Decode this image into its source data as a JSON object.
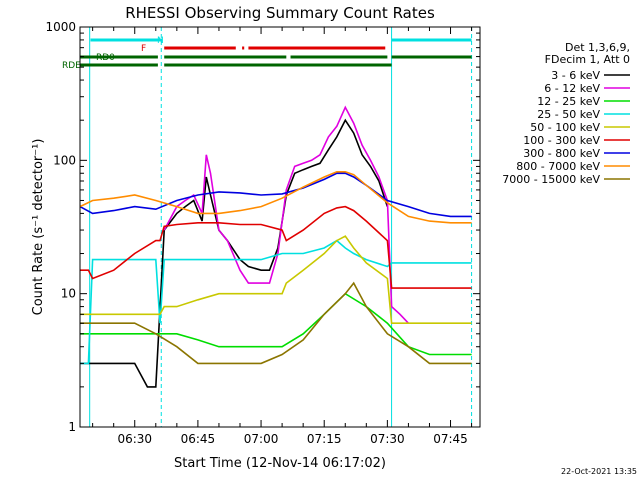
{
  "chart_data": {
    "type": "line",
    "title": "RHESSI Observing Summary Count Rates",
    "xlabel": "Start Time (12-Nov-14 06:17:02)",
    "ylabel": "Count Rate (s⁻¹ detector⁻¹)",
    "yscale": "log",
    "ylim": [
      1,
      1000
    ],
    "xlim_minutes": [
      377,
      472
    ],
    "x_tick_labels": [
      "06:30",
      "06:45",
      "07:00",
      "07:15",
      "07:30",
      "07:45"
    ],
    "x_tick_minutes": [
      390,
      405,
      420,
      435,
      450,
      465
    ],
    "y_tick_labels": [
      "1",
      "10",
      "100",
      "1000"
    ],
    "y_tick_values": [
      1,
      10,
      100,
      1000
    ],
    "legend_header": [
      "Det 1,3,6,9,",
      "FDecim 1, Att 0"
    ],
    "series": [
      {
        "name": "3 - 6 keV",
        "color": "#000000",
        "x": [
          377,
          380,
          385,
          390,
          393,
          395,
          397,
          400,
          402,
          404,
          406,
          407,
          408,
          410,
          412,
          415,
          417,
          420,
          422,
          424,
          426,
          428,
          430,
          432,
          434,
          436,
          438,
          440,
          442,
          444,
          446,
          448,
          450,
          451,
          455,
          460,
          465,
          470
        ],
        "y": [
          3,
          3,
          3,
          3,
          2,
          2,
          30,
          40,
          45,
          50,
          35,
          75,
          55,
          30,
          25,
          18,
          16,
          15,
          15,
          22,
          55,
          80,
          85,
          90,
          95,
          120,
          150,
          200,
          160,
          110,
          90,
          70,
          45,
          null,
          null,
          null,
          null,
          null
        ]
      },
      {
        "name": "6 - 12 keV",
        "color": "#e000e0",
        "x": [
          397,
          400,
          402,
          404,
          406,
          407,
          408,
          410,
          412,
          415,
          417,
          420,
          422,
          424,
          426,
          428,
          430,
          432,
          434,
          436,
          438,
          440,
          442,
          444,
          446,
          448,
          450,
          451,
          453,
          455
        ],
        "y": [
          30,
          45,
          50,
          55,
          40,
          110,
          80,
          30,
          25,
          15,
          12,
          12,
          12,
          20,
          60,
          90,
          95,
          100,
          110,
          150,
          180,
          250,
          190,
          130,
          100,
          75,
          50,
          8,
          7,
          6
        ]
      },
      {
        "name": "12 - 25 keV",
        "color": "#00dd00",
        "x": [
          377,
          380,
          385,
          390,
          395,
          400,
          405,
          410,
          415,
          420,
          425,
          430,
          435,
          440,
          445,
          450,
          455,
          460,
          465,
          470
        ],
        "y": [
          5,
          5,
          5,
          5,
          5,
          5,
          4.5,
          4,
          4,
          4,
          4,
          5,
          7,
          10,
          8,
          6,
          4,
          3.5,
          3.5,
          3.5
        ]
      },
      {
        "name": "25 - 50 keV",
        "color": "#00e0e0",
        "x": [
          377,
          379,
          380,
          385,
          390,
          395,
          396,
          397,
          400,
          405,
          410,
          415,
          420,
          425,
          426,
          430,
          435,
          438,
          440,
          442,
          445,
          450,
          451,
          455,
          460,
          465,
          470
        ],
        "y": [
          3,
          3,
          18,
          18,
          18,
          18,
          6,
          18,
          18,
          18,
          18,
          18,
          18,
          20,
          20,
          20,
          22,
          25,
          22,
          20,
          18,
          16,
          17,
          17,
          17,
          17,
          17
        ]
      },
      {
        "name": "50 - 100 keV",
        "color": "#c8c800",
        "x": [
          377,
          380,
          385,
          390,
          395,
          396,
          397,
          400,
          405,
          410,
          415,
          420,
          425,
          426,
          430,
          435,
          438,
          440,
          442,
          445,
          450,
          451,
          455,
          460,
          465,
          470
        ],
        "y": [
          7,
          7,
          7,
          7,
          7,
          7,
          8,
          8,
          9,
          10,
          10,
          10,
          10,
          12,
          15,
          20,
          25,
          27,
          22,
          17,
          13,
          6,
          6,
          6,
          6,
          6
        ]
      },
      {
        "name": "100 - 300 keV",
        "color": "#e00000",
        "x": [
          377,
          379,
          380,
          385,
          390,
          395,
          396,
          397,
          400,
          405,
          410,
          415,
          420,
          425,
          426,
          430,
          435,
          438,
          440,
          442,
          445,
          450,
          451,
          455,
          460,
          465,
          470
        ],
        "y": [
          15,
          15,
          13,
          15,
          20,
          25,
          25,
          32,
          33,
          34,
          34,
          33,
          33,
          30,
          25,
          30,
          40,
          44,
          45,
          42,
          35,
          25,
          11,
          11,
          11,
          11,
          11
        ]
      },
      {
        "name": "300 - 800 keV",
        "color": "#0000e0",
        "x": [
          377,
          380,
          385,
          390,
          395,
          400,
          405,
          410,
          415,
          420,
          425,
          430,
          435,
          438,
          440,
          442,
          445,
          450,
          455,
          460,
          465,
          470
        ],
        "y": [
          45,
          40,
          42,
          45,
          43,
          50,
          55,
          58,
          57,
          55,
          56,
          62,
          72,
          80,
          80,
          75,
          65,
          50,
          45,
          40,
          38,
          38
        ]
      },
      {
        "name": "800 - 7000 keV",
        "color": "#ff8c00",
        "x": [
          377,
          380,
          385,
          390,
          395,
          400,
          405,
          410,
          415,
          420,
          425,
          430,
          435,
          438,
          440,
          442,
          445,
          450,
          455,
          460,
          465,
          470
        ],
        "y": [
          45,
          50,
          52,
          55,
          50,
          45,
          40,
          40,
          42,
          45,
          52,
          63,
          75,
          82,
          82,
          78,
          65,
          48,
          38,
          35,
          34,
          34
        ]
      },
      {
        "name": "7000 - 15000 keV",
        "color": "#8b7500",
        "x": [
          377,
          380,
          385,
          390,
          395,
          400,
          405,
          410,
          415,
          420,
          425,
          430,
          435,
          440,
          442,
          445,
          450,
          455,
          460,
          465,
          470
        ],
        "y": [
          6,
          6,
          6,
          6,
          5,
          4,
          3,
          3,
          3,
          3,
          3.5,
          4.5,
          7,
          10,
          12,
          8,
          5,
          4,
          3,
          3,
          3
        ]
      }
    ],
    "flags": [
      {
        "name": "N",
        "color": "#00e0e0",
        "segments": [
          [
            379.5,
            396.5
          ],
          [
            451,
            470
          ]
        ]
      },
      {
        "name": "F",
        "color": "#e00000",
        "segments": [
          [
            397,
            414
          ],
          [
            415.5,
            416
          ],
          [
            417,
            449.5
          ]
        ]
      },
      {
        "name": "RD0",
        "color": "#006400",
        "segments": [
          [
            377,
            395.5
          ],
          [
            397,
            426
          ],
          [
            427,
            450
          ],
          [
            451,
            470
          ]
        ]
      },
      {
        "name": "RDE",
        "color": "#006400",
        "segments": [
          [
            377,
            395.5
          ],
          [
            397,
            451
          ]
        ]
      }
    ],
    "vlines": [
      {
        "x": 379.3,
        "color": "#00e0e0",
        "style": "solid"
      },
      {
        "x": 396.3,
        "color": "#00e0e0",
        "style": "dashed"
      },
      {
        "x": 451,
        "color": "#00e0e0",
        "style": "solid"
      },
      {
        "x": 470,
        "color": "#00e0e0",
        "style": "dashed"
      }
    ],
    "timestamp": "22-Oct-2021 13:35"
  }
}
